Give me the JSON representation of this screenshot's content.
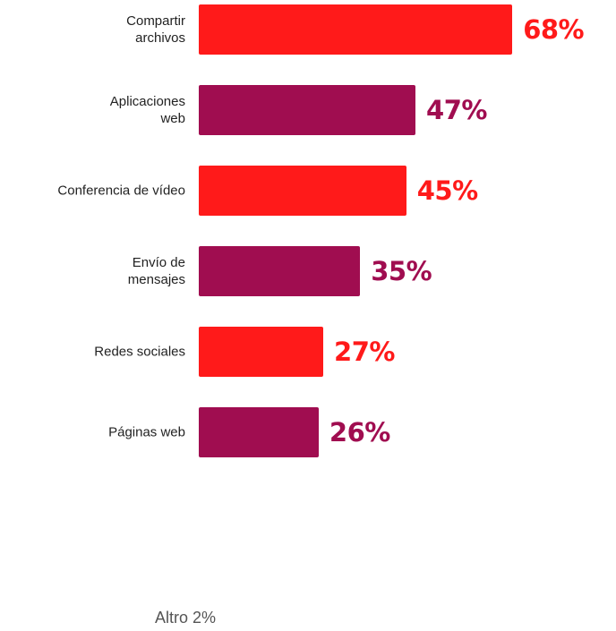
{
  "chart_data": {
    "type": "bar",
    "orientation": "horizontal",
    "categories": [
      "Compartir\narchivos",
      "Aplicaciones\nweb",
      "Conferencia de vídeo",
      "Envío de\nmensajes",
      "Redes sociales",
      "Páginas web"
    ],
    "values": [
      68,
      47,
      45,
      35,
      27,
      26
    ],
    "value_labels": [
      "68%",
      "47%",
      "45%",
      "35%",
      "27%",
      "26%"
    ],
    "colors": [
      "#ff1a1a",
      "#a00d50",
      "#ff1a1a",
      "#a00d50",
      "#ff1a1a",
      "#a00d50"
    ],
    "annotation": "Altro 2%"
  }
}
